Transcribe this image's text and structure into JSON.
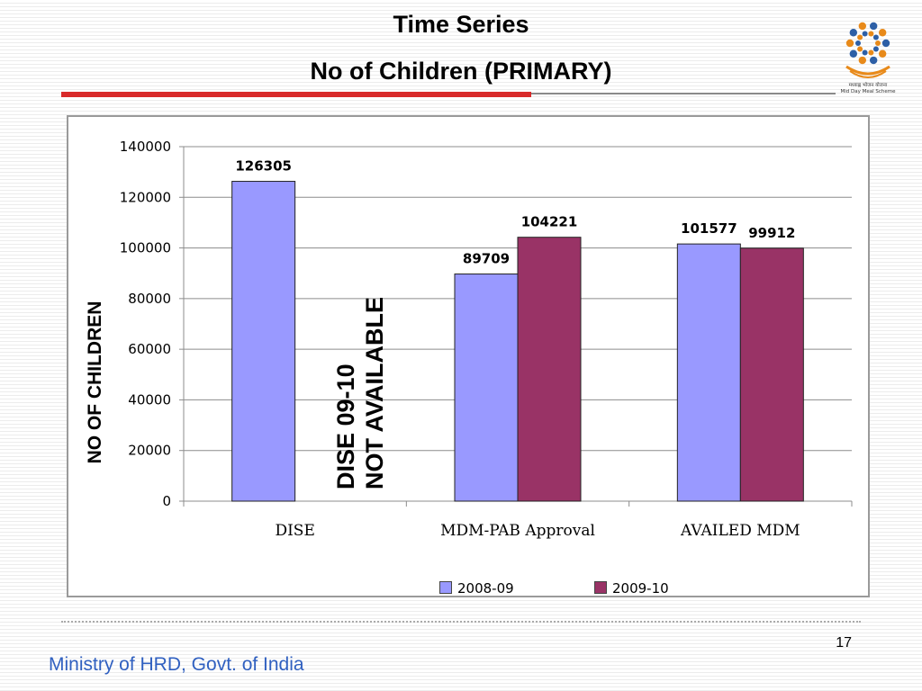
{
  "slide": {
    "title_line1": "Time Series",
    "title_line2": "No of Children (PRIMARY)",
    "annotation_line1": "DISE 09-10",
    "annotation_line2": "NOT AVAILABLE",
    "page_number": "17",
    "footer": "Ministry of HRD, Govt. of India",
    "logo_text_line1": "मध्याह्न भोजन योजना",
    "logo_text_line2": "Mid Day Meal Scheme",
    "colors": {
      "accent_red": "#d92a2a",
      "footer_blue": "#3060c0"
    }
  },
  "chart_data": {
    "type": "bar",
    "title": "",
    "xlabel": "",
    "ylabel": "NO OF CHILDREN",
    "ylim": [
      0,
      140000
    ],
    "yticks": [
      0,
      20000,
      40000,
      60000,
      80000,
      100000,
      120000,
      140000
    ],
    "grid": true,
    "legend_position": "bottom",
    "categories": [
      "DISE",
      "MDM-PAB Approval",
      "AVAILED MDM"
    ],
    "series": [
      {
        "name": "2008-09",
        "color": "#9999ff",
        "values": [
          126305,
          89709,
          101577
        ]
      },
      {
        "name": "2009-10",
        "color": "#993366",
        "values": [
          null,
          104221,
          99912
        ]
      }
    ]
  }
}
